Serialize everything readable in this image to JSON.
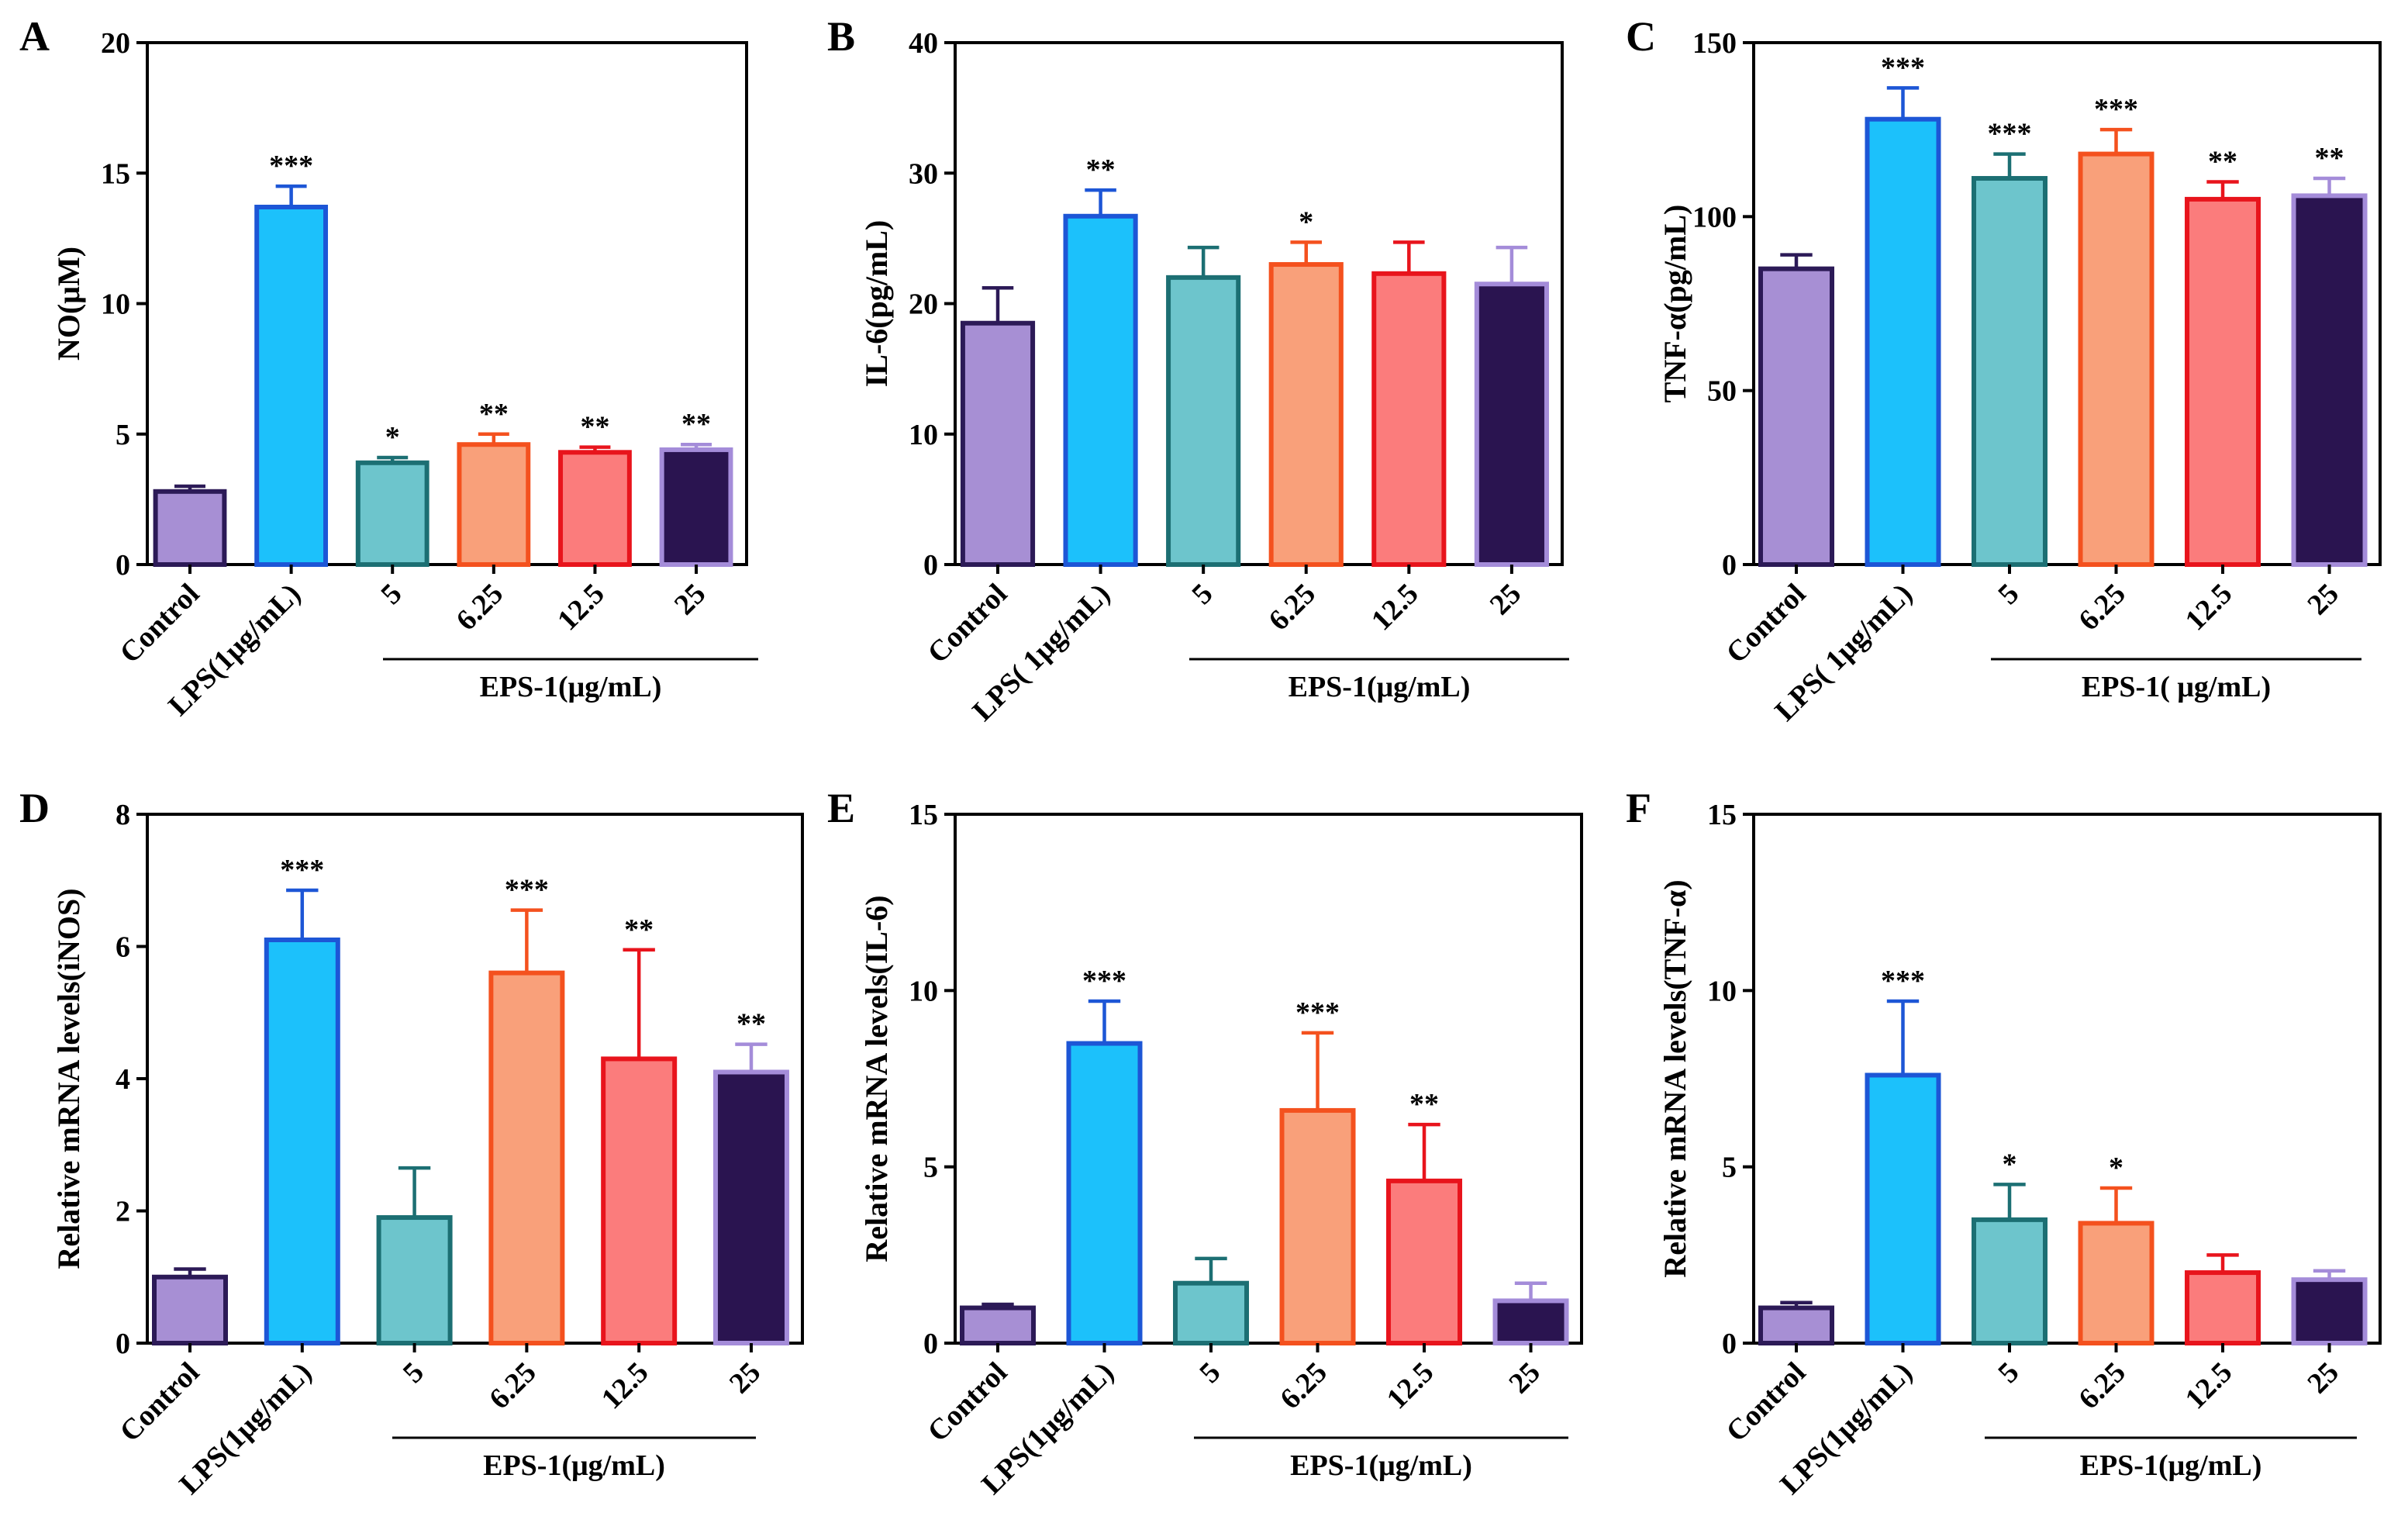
{
  "colors": {
    "fills": [
      "#a78fd4",
      "#1cc1fb",
      "#6dc5cc",
      "#f9a07a",
      "#fb7c7c",
      "#2a1450"
    ],
    "strokes": [
      "#2c1a57",
      "#1d56d6",
      "#1c6f73",
      "#f4511e",
      "#e8141c",
      "#a48cd9"
    ]
  },
  "chart_data": [
    {
      "panel": "A",
      "type": "bar",
      "ylabel": "NO(μM)",
      "ylim": [
        0,
        20
      ],
      "yticks": [
        0,
        5,
        10,
        15,
        20
      ],
      "categories": [
        "Control",
        "LPS(1μg/mL)",
        "5",
        "6.25",
        "12.5",
        "25"
      ],
      "values": [
        2.8,
        13.7,
        3.9,
        4.6,
        4.3,
        4.4
      ],
      "errors": [
        0.2,
        0.8,
        0.2,
        0.4,
        0.2,
        0.2
      ],
      "significance": [
        "",
        "***",
        "*",
        "**",
        "**",
        "**"
      ],
      "group_label": "EPS-1(μg/mL)"
    },
    {
      "panel": "B",
      "type": "bar",
      "ylabel": "IL-6(pg/mL)",
      "ylim": [
        0,
        40
      ],
      "yticks": [
        0,
        10,
        20,
        30,
        40
      ],
      "categories": [
        "Control",
        "LPS( 1μg/mL)",
        "5",
        "6.25",
        "12.5",
        "25"
      ],
      "values": [
        18.5,
        26.7,
        22.0,
        23.0,
        22.3,
        21.5
      ],
      "errors": [
        2.7,
        2.0,
        2.3,
        1.7,
        2.4,
        2.8
      ],
      "significance": [
        "",
        "**",
        "",
        "*",
        "",
        ""
      ],
      "group_label": "EPS-1(μg/mL)"
    },
    {
      "panel": "C",
      "type": "bar",
      "ylabel": "TNF-α(pg/mL)",
      "ylim": [
        0,
        150
      ],
      "yticks": [
        0,
        50,
        100,
        150
      ],
      "categories": [
        "Control",
        "LPS( 1μg/mL)",
        "5",
        "6.25",
        "12.5",
        "25"
      ],
      "values": [
        85,
        128,
        111,
        118,
        105,
        106
      ],
      "errors": [
        4,
        9,
        7,
        7,
        5,
        5
      ],
      "significance": [
        "",
        "***",
        "***",
        "***",
        "**",
        "**"
      ],
      "group_label": "EPS-1( μg/mL)"
    },
    {
      "panel": "D",
      "type": "bar",
      "ylabel": "Relative mRNA levels(iNOS)",
      "ylim": [
        0,
        8
      ],
      "yticks": [
        0,
        2,
        4,
        6,
        8
      ],
      "categories": [
        "Control",
        "LPS(1μg/mL)",
        "5",
        "6.25",
        "12.5",
        "25"
      ],
      "values": [
        1.0,
        6.1,
        1.9,
        5.6,
        4.3,
        4.1
      ],
      "errors": [
        0.12,
        0.75,
        0.75,
        0.95,
        1.65,
        0.42
      ],
      "significance": [
        "",
        "***",
        "",
        "***",
        "**",
        "**"
      ],
      "group_label": "EPS-1(μg/mL)"
    },
    {
      "panel": "E",
      "type": "bar",
      "ylabel": "Relative mRNA levels(IL-6)",
      "ylim": [
        0,
        15
      ],
      "yticks": [
        0,
        5,
        10,
        15
      ],
      "categories": [
        "Control",
        "LPS(1μg/mL)",
        "5",
        "6.25",
        "12.5",
        "25"
      ],
      "values": [
        1.0,
        8.5,
        1.7,
        6.6,
        4.6,
        1.2
      ],
      "errors": [
        0.1,
        1.2,
        0.7,
        2.2,
        1.6,
        0.5
      ],
      "significance": [
        "",
        "***",
        "",
        "***",
        "**",
        ""
      ],
      "group_label": "EPS-1(μg/mL)"
    },
    {
      "panel": "F",
      "type": "bar",
      "ylabel": "Relative mRNA levels(TNF-α)",
      "ylim": [
        0,
        15
      ],
      "yticks": [
        0,
        5,
        10,
        15
      ],
      "categories": [
        "Control",
        "LPS(1μg/mL)",
        "5",
        "6.25",
        "12.5",
        "25"
      ],
      "values": [
        1.0,
        7.6,
        3.5,
        3.4,
        2.0,
        1.8
      ],
      "errors": [
        0.15,
        2.1,
        1.0,
        1.0,
        0.5,
        0.25
      ],
      "significance": [
        "",
        "***",
        "*",
        "*",
        "",
        ""
      ],
      "group_label": "EPS-1(μg/mL)"
    }
  ]
}
